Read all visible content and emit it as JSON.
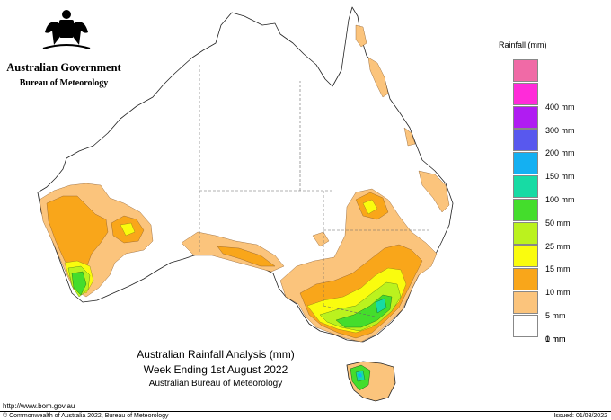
{
  "header": {
    "government": "Australian Government",
    "bureau": "Bureau of Meteorology"
  },
  "legend": {
    "title": "Rainfall (mm)",
    "items": [
      {
        "label": "",
        "color": "#f06aa6"
      },
      {
        "label": "400 mm",
        "color": "#ff2bd9"
      },
      {
        "label": "300 mm",
        "color": "#b01cf2"
      },
      {
        "label": "200 mm",
        "color": "#5858ee"
      },
      {
        "label": "150 mm",
        "color": "#14b0f2"
      },
      {
        "label": "100 mm",
        "color": "#17dba4"
      },
      {
        "label": "50 mm",
        "color": "#44dd2c"
      },
      {
        "label": "25 mm",
        "color": "#bbf21e"
      },
      {
        "label": "15 mm",
        "color": "#fafc0e"
      },
      {
        "label": "10 mm",
        "color": "#f9a61a"
      },
      {
        "label": "5 mm",
        "color": "#fbc47c"
      },
      {
        "label": "1 mm",
        "color": "#ffffff"
      }
    ],
    "bottom_label": "0 mm"
  },
  "caption": {
    "title": "Australian Rainfall Analysis (mm)",
    "subtitle": "Week Ending 1st August 2022",
    "org": "Australian Bureau of Meteorology"
  },
  "footer": {
    "website": "http://www.bom.gov.au",
    "copyright": "© Commonwealth of Australia 2022, Bureau of Meteorology",
    "issued": "Issued: 01/08/2022"
  }
}
